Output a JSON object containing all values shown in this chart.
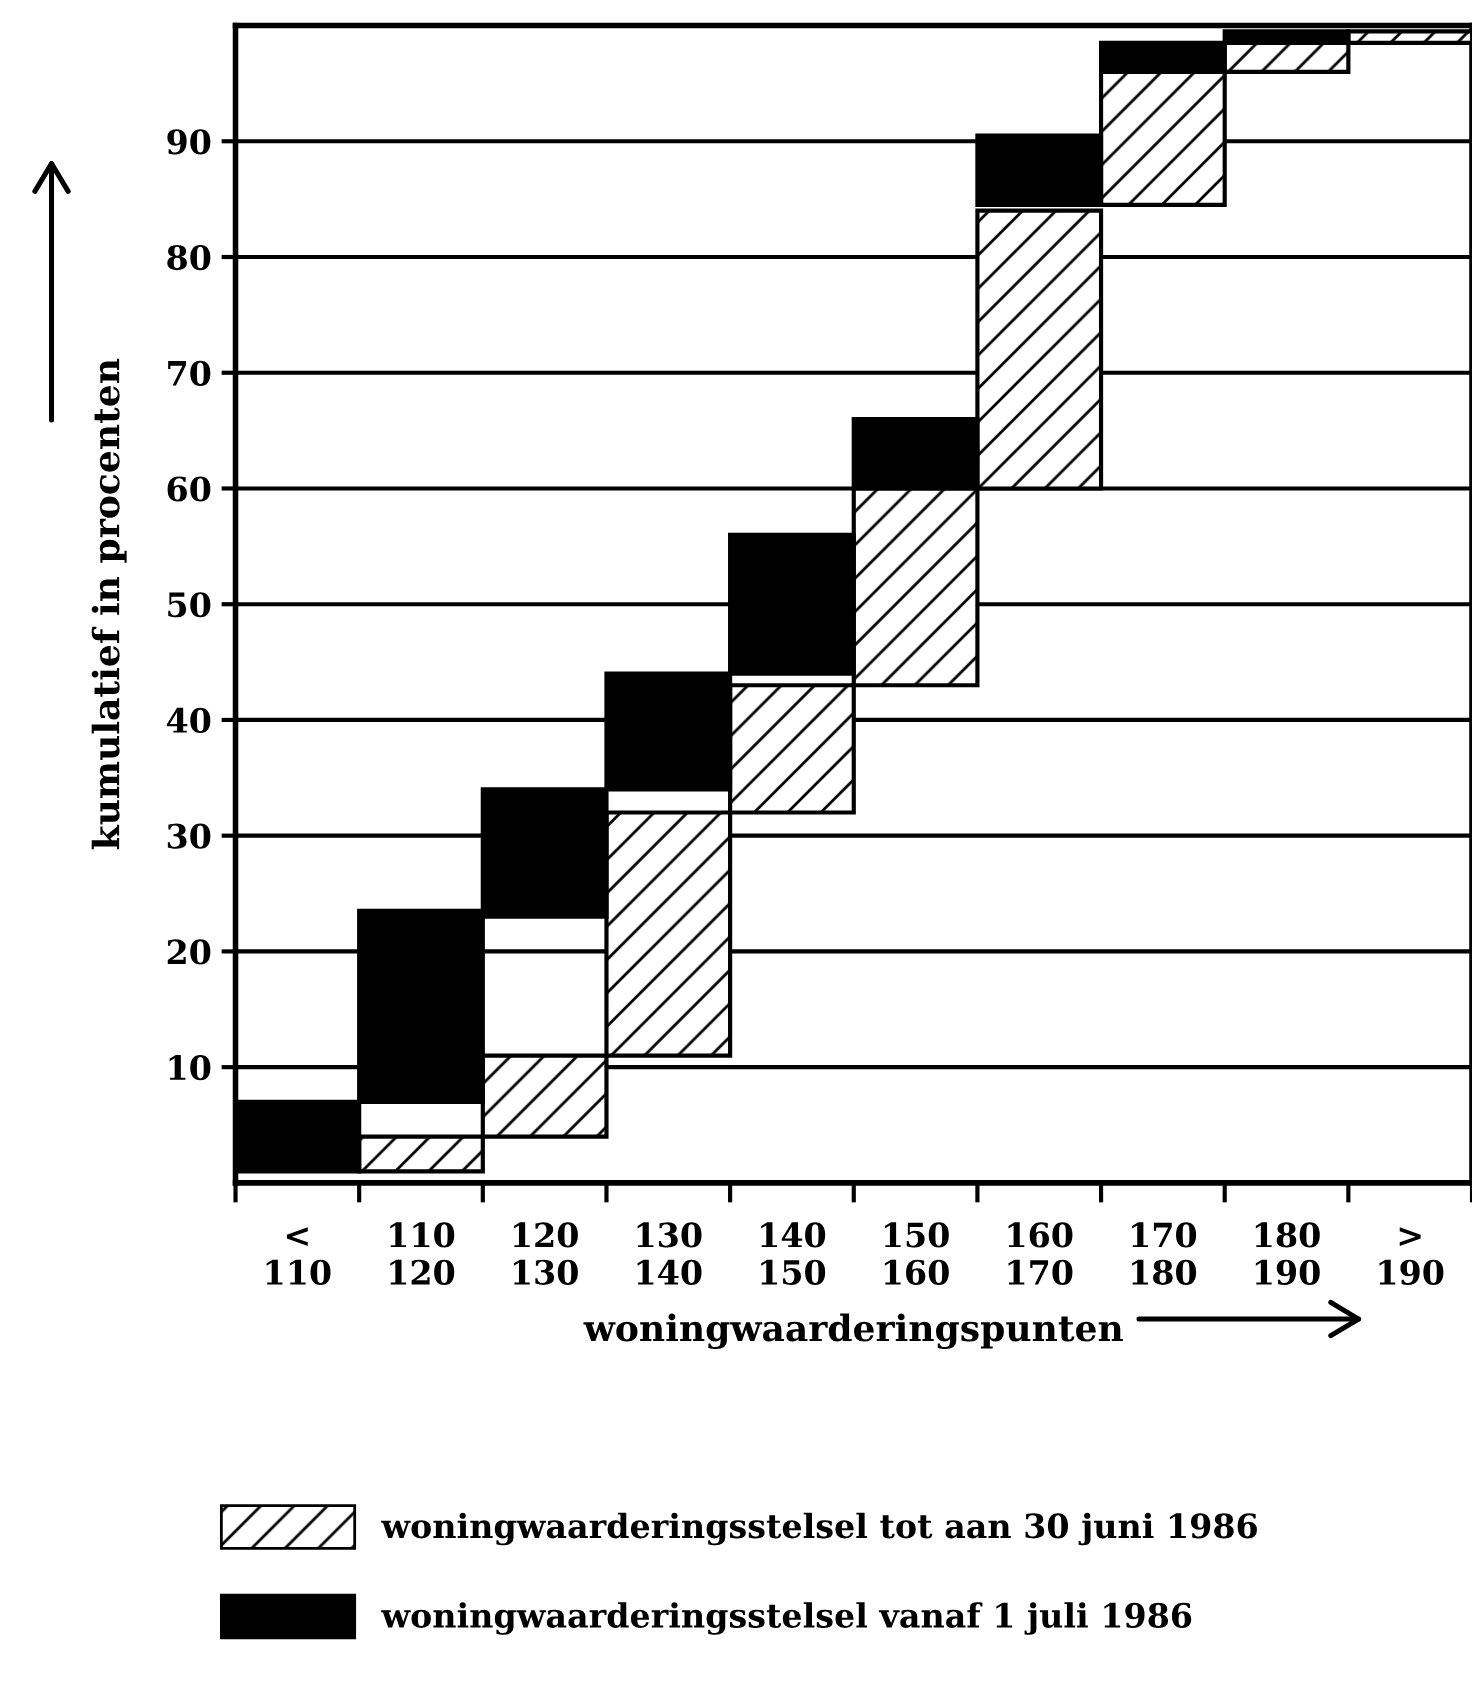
{
  "chart_data": {
    "type": "bar",
    "categories": [
      "<\n110",
      "110\n120",
      "120\n130",
      "130\n140",
      "140\n150",
      "150\n160",
      "160\n170",
      "170\n180",
      "180\n190",
      ">\n190"
    ],
    "xlabel": "woningwaarderingspunten",
    "ylabel": "kumulatief in procenten",
    "series": [
      {
        "name": "woningwaarderingsstelsel tot aan 30 juni 1986",
        "color": "#000000",
        "values": [
          null,
          3,
          7,
          21,
          11,
          17,
          24,
          11.5,
          2.5,
          1
        ],
        "base": [
          null,
          1,
          4,
          11,
          32,
          43,
          60,
          84.5,
          96,
          98.5
        ]
      },
      {
        "name": "woningwaarderingsstelsel vanaf 1 juli 1986",
        "color": "#000000",
        "values": [
          6,
          16.5,
          11,
          10,
          12,
          6,
          6,
          2.5,
          1,
          null
        ],
        "base": [
          1,
          7,
          23,
          34,
          44,
          60,
          84.5,
          96,
          98.5,
          null
        ]
      }
    ],
    "ylim": [
      0,
      100
    ],
    "yticks": [
      10,
      20,
      30,
      40,
      50,
      60,
      70,
      80,
      90
    ],
    "grid": "y",
    "legend": "bottom"
  }
}
